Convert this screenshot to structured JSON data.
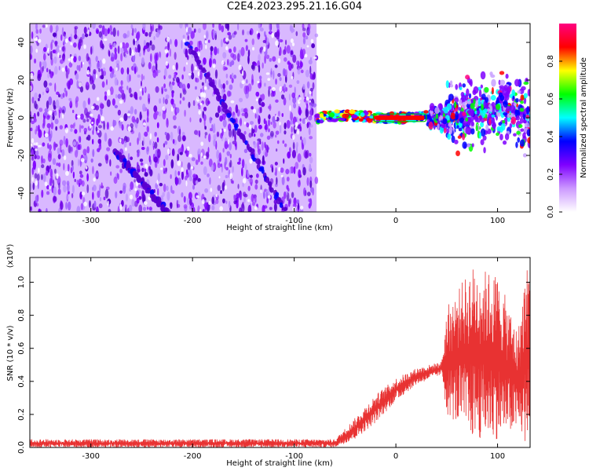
{
  "title": "C2E4.2023.295.21.16.G04",
  "chart_data": [
    {
      "type": "heatmap",
      "xlabel": "Height of straight line (km)",
      "ylabel": "Frequency (Hz)",
      "xlim": [
        -360,
        132
      ],
      "ylim": [
        -50,
        50
      ],
      "xticks": [
        -300,
        -200,
        -100,
        0,
        100
      ],
      "yticks": [
        -40,
        -20,
        0,
        20,
        40
      ],
      "colorbar": {
        "label": "Normalized spectral amplitude",
        "range": [
          0,
          1
        ],
        "ticks": [
          "0.0",
          "0.2",
          "0.4",
          "0.6",
          "0.8"
        ],
        "colors": [
          "#ffffff",
          "#cc99ff",
          "#7f00ff",
          "#0000ff",
          "#00ffff",
          "#00ff00",
          "#ffff00",
          "#ff0000",
          "#ff0080"
        ]
      },
      "noise_region_x": [
        -360,
        -78
      ],
      "trace_points": [
        {
          "x": -78,
          "y": 0
        },
        {
          "x": -60,
          "y": 1
        },
        {
          "x": -40,
          "y": 1
        },
        {
          "x": -20,
          "y": 0
        },
        {
          "x": 0,
          "y": 0
        },
        {
          "x": 20,
          "y": 0
        },
        {
          "x": 30,
          "y": 1
        },
        {
          "x": 50,
          "y": 0
        },
        {
          "x": 70,
          "y": 2
        },
        {
          "x": 90,
          "y": 4
        },
        {
          "x": 110,
          "y": 6
        },
        {
          "x": 130,
          "y": 0
        }
      ],
      "diagonal_features": [
        {
          "x_start": -205,
          "y_start": 40,
          "x_end": -110,
          "y_end": -48
        },
        {
          "x_start": -275,
          "y_start": -18,
          "x_end": -225,
          "y_end": -50
        }
      ]
    },
    {
      "type": "line",
      "xlabel": "Height of straight line (km)",
      "ylabel": "SNR (10 * v/v)",
      "y_multiplier": "(x10⁴)",
      "xlim": [
        -360,
        132
      ],
      "ylim": [
        0,
        1.15
      ],
      "xticks": [
        -300,
        -200,
        -100,
        0,
        100
      ],
      "yticks": [
        "0.0",
        "0.2",
        "0.4",
        "0.6",
        "0.8",
        "1.0"
      ],
      "series": [
        {
          "color": "#e83232",
          "envelope": [
            {
              "x": -360,
              "low": 0.0,
              "high": 0.05
            },
            {
              "x": -100,
              "low": 0.0,
              "high": 0.05
            },
            {
              "x": -60,
              "low": 0.0,
              "high": 0.05
            },
            {
              "x": -40,
              "low": 0.05,
              "high": 0.18
            },
            {
              "x": -20,
              "low": 0.15,
              "high": 0.32
            },
            {
              "x": 0,
              "low": 0.28,
              "high": 0.42
            },
            {
              "x": 20,
              "low": 0.38,
              "high": 0.48
            },
            {
              "x": 45,
              "low": 0.44,
              "high": 0.52
            },
            {
              "x": 50,
              "low": 0.2,
              "high": 0.85
            },
            {
              "x": 75,
              "low": 0.05,
              "high": 1.1
            },
            {
              "x": 100,
              "low": 0.05,
              "high": 1.05
            },
            {
              "x": 120,
              "low": 0.1,
              "high": 0.7
            },
            {
              "x": 128,
              "low": 0.0,
              "high": 1.1
            }
          ]
        }
      ]
    }
  ]
}
